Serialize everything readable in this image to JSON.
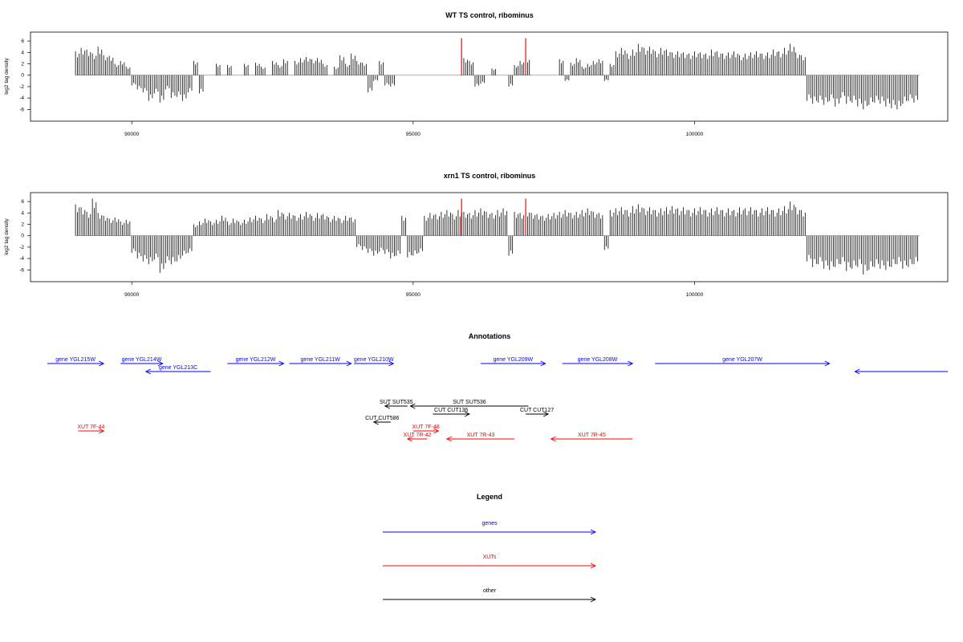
{
  "colors": {
    "gene": "#0000ff",
    "xut": "#ff0000",
    "other": "#000000",
    "marker": "#ff0000",
    "axis": "#000000"
  },
  "chart_data": [
    {
      "type": "bar",
      "title": "WT TS control, ribominus",
      "ylabel": "log2 tag density",
      "xlim": [
        88200,
        104500
      ],
      "ylim": [
        -7.5,
        7
      ],
      "xticks": [
        90000,
        95000,
        100000
      ],
      "yticks": [
        -6,
        -4,
        -2,
        0,
        2,
        4,
        6
      ],
      "markers": [
        95860,
        97000
      ],
      "series": {
        "x": [
          89000,
          89100,
          89200,
          89300,
          89400,
          89500,
          89600,
          89700,
          89800,
          89900,
          90000,
          90100,
          90200,
          90300,
          90400,
          90500,
          90600,
          90700,
          90800,
          90900,
          91000,
          91100,
          91200,
          91300,
          91400,
          91500,
          91600,
          91700,
          91800,
          91900,
          92000,
          92100,
          92200,
          92300,
          92400,
          92500,
          92600,
          92700,
          92800,
          92900,
          93000,
          93100,
          93200,
          93300,
          93400,
          93500,
          93600,
          93700,
          93800,
          93900,
          94000,
          94100,
          94200,
          94300,
          94400,
          94500,
          94600,
          94700,
          94800,
          94900,
          95000,
          95100,
          95200,
          95300,
          95400,
          95500,
          95600,
          95700,
          95800,
          95900,
          96000,
          96100,
          96200,
          96300,
          96400,
          96500,
          96600,
          96700,
          96800,
          96900,
          97000,
          97100,
          97200,
          97300,
          97400,
          97500,
          97600,
          97700,
          97800,
          97900,
          98000,
          98100,
          98200,
          98300,
          98400,
          98500,
          98600,
          98700,
          98800,
          98900,
          99000,
          99100,
          99200,
          99300,
          99400,
          99500,
          99600,
          99700,
          99800,
          99900,
          100000,
          100100,
          100200,
          100300,
          100400,
          100500,
          100600,
          100700,
          100800,
          100900,
          101000,
          101100,
          101200,
          101300,
          101400,
          101500,
          101600,
          101700,
          101800,
          101900,
          102000,
          102100,
          102200,
          102300,
          102400,
          102500,
          102600,
          102700,
          102800,
          102900,
          103000,
          103100,
          103200,
          103300,
          103400,
          103500,
          103600,
          103700,
          103800,
          103900
        ],
        "values": [
          4.2,
          4.8,
          4.5,
          3.8,
          5.0,
          3.5,
          3.4,
          2.0,
          2.5,
          1.5,
          -1.8,
          -2.5,
          -3.0,
          -4.5,
          -3.2,
          -4.8,
          -2.5,
          -4.0,
          -3.8,
          -4.5,
          -3.0,
          2.5,
          -3.2,
          0,
          0,
          2.0,
          0,
          1.8,
          0,
          0,
          2.0,
          0,
          2.2,
          1.5,
          0,
          2.5,
          1.8,
          2.8,
          0,
          2.5,
          3.0,
          3.2,
          2.8,
          3.0,
          2.0,
          0,
          1.5,
          3.5,
          2.0,
          3.8,
          2.5,
          2.2,
          -3.0,
          -1.0,
          2.5,
          -1.8,
          -2.0,
          0,
          0,
          0,
          0,
          0,
          0,
          0,
          0,
          0,
          0,
          0,
          0,
          3.0,
          2.5,
          -2.0,
          -1.5,
          0,
          1.2,
          0,
          0,
          -2.0,
          1.8,
          2.5,
          3.0,
          0,
          0,
          0,
          0,
          0,
          2.8,
          -1.0,
          2.2,
          3.0,
          1.5,
          2.0,
          2.5,
          2.8,
          -1.0,
          2.0,
          4.2,
          4.8,
          3.8,
          4.5,
          5.5,
          4.8,
          5.0,
          4.2,
          4.8,
          4.5,
          4.0,
          4.2,
          4.0,
          3.8,
          4.2,
          4.0,
          3.8,
          4.5,
          4.2,
          3.8,
          4.0,
          4.2,
          3.5,
          3.8,
          4.0,
          4.2,
          3.8,
          4.0,
          4.5,
          4.2,
          4.8,
          5.5,
          4.0,
          3.5,
          -4.5,
          -5.0,
          -4.8,
          -5.2,
          -4.5,
          -5.5,
          -4.0,
          -5.0,
          -4.8,
          -5.5,
          -6.0,
          -5.2,
          -4.8,
          -5.0,
          -5.5,
          -5.8,
          -6.0,
          -5.0,
          -4.5,
          -4.8
        ]
      }
    },
    {
      "type": "bar",
      "title": "xrn1 TS control, ribominus",
      "ylabel": "log2 tag density",
      "xlim": [
        88200,
        104500
      ],
      "ylim": [
        -7.5,
        7
      ],
      "xticks": [
        90000,
        95000,
        100000
      ],
      "yticks": [
        -6,
        -4,
        -2,
        0,
        2,
        4,
        6
      ],
      "markers": [
        95860,
        97000
      ],
      "series": {
        "x": [
          89000,
          89100,
          89200,
          89300,
          89400,
          89500,
          89600,
          89700,
          89800,
          89900,
          90000,
          90100,
          90200,
          90300,
          90400,
          90500,
          90600,
          90700,
          90800,
          90900,
          91000,
          91100,
          91200,
          91300,
          91400,
          91500,
          91600,
          91700,
          91800,
          91900,
          92000,
          92100,
          92200,
          92300,
          92400,
          92500,
          92600,
          92700,
          92800,
          92900,
          93000,
          93100,
          93200,
          93300,
          93400,
          93500,
          93600,
          93700,
          93800,
          93900,
          94000,
          94100,
          94200,
          94300,
          94400,
          94500,
          94600,
          94700,
          94800,
          94900,
          95000,
          95100,
          95200,
          95300,
          95400,
          95500,
          95600,
          95700,
          95800,
          95900,
          96000,
          96100,
          96200,
          96300,
          96400,
          96500,
          96600,
          96700,
          96800,
          96900,
          97000,
          97100,
          97200,
          97300,
          97400,
          97500,
          97600,
          97700,
          97800,
          97900,
          98000,
          98100,
          98200,
          98300,
          98400,
          98500,
          98600,
          98700,
          98800,
          98900,
          99000,
          99100,
          99200,
          99300,
          99400,
          99500,
          99600,
          99700,
          99800,
          99900,
          100000,
          100100,
          100200,
          100300,
          100400,
          100500,
          100600,
          100700,
          100800,
          100900,
          101000,
          101100,
          101200,
          101300,
          101400,
          101500,
          101600,
          101700,
          101800,
          101900,
          102000,
          102100,
          102200,
          102300,
          102400,
          102500,
          102600,
          102700,
          102800,
          102900,
          103000,
          103100,
          103200,
          103300,
          103400,
          103500,
          103600,
          103700,
          103800,
          103900
        ],
        "values": [
          5.5,
          5.0,
          4.2,
          6.5,
          4.0,
          3.5,
          3.0,
          3.2,
          2.5,
          2.8,
          -3.0,
          -4.0,
          -4.5,
          -5.0,
          -4.2,
          -6.5,
          -4.8,
          -5.0,
          -4.5,
          -3.5,
          -3.0,
          2.0,
          2.5,
          3.0,
          2.5,
          2.8,
          3.5,
          2.5,
          3.0,
          2.5,
          2.8,
          3.2,
          3.5,
          3.0,
          3.8,
          3.2,
          4.5,
          3.8,
          4.0,
          3.5,
          3.8,
          4.2,
          3.5,
          4.0,
          3.8,
          3.2,
          3.5,
          3.0,
          3.5,
          3.2,
          -2.0,
          -2.5,
          -3.0,
          -3.5,
          -2.8,
          -3.2,
          -4.0,
          -3.5,
          3.5,
          -3.8,
          -3.5,
          -3.0,
          3.5,
          4.0,
          3.8,
          4.2,
          4.5,
          3.8,
          4.5,
          4.2,
          4.0,
          4.5,
          4.8,
          4.2,
          4.0,
          4.5,
          4.8,
          -3.5,
          4.2,
          4.0,
          4.5,
          4.0,
          3.8,
          3.5,
          3.8,
          4.0,
          4.2,
          4.5,
          4.0,
          4.2,
          4.5,
          4.8,
          4.2,
          4.0,
          -2.5,
          4.5,
          4.8,
          5.0,
          4.5,
          5.2,
          5.5,
          4.8,
          5.0,
          4.5,
          4.8,
          5.0,
          5.2,
          4.8,
          5.0,
          4.5,
          4.8,
          5.0,
          4.5,
          4.8,
          5.0,
          4.5,
          4.8,
          4.5,
          5.0,
          4.8,
          5.0,
          4.5,
          4.8,
          5.0,
          4.5,
          4.8,
          5.2,
          6.0,
          5.0,
          4.5,
          -4.5,
          -5.5,
          -5.0,
          -5.8,
          -6.0,
          -5.5,
          -5.0,
          -6.2,
          -5.8,
          -5.5,
          -6.8,
          -6.0,
          -5.5,
          -5.8,
          -6.0,
          -5.5,
          -5.0,
          -5.8,
          -5.5,
          -5.0
        ]
      }
    }
  ],
  "annotations": {
    "title": "Annotations",
    "xlim": [
      88200,
      104500
    ],
    "items": [
      {
        "label": "gene YGL215W",
        "x0": 88500,
        "x1": 89500,
        "dir": "right",
        "type": "gene",
        "row": 0
      },
      {
        "label": "gene YGL214W",
        "x0": 89800,
        "x1": 90550,
        "dir": "right",
        "type": "gene",
        "row": 0
      },
      {
        "label": "gene YGL213C",
        "x0": 90250,
        "x1": 91400,
        "dir": "left",
        "type": "gene",
        "row": 1
      },
      {
        "label": "gene YGL212W",
        "x0": 91700,
        "x1": 92700,
        "dir": "right",
        "type": "gene",
        "row": 0
      },
      {
        "label": "gene YGL211W",
        "x0": 92800,
        "x1": 93900,
        "dir": "right",
        "type": "gene",
        "row": 0
      },
      {
        "label": "gene YGL210W",
        "x0": 93950,
        "x1": 94650,
        "dir": "right",
        "type": "gene",
        "row": 0
      },
      {
        "label": "gene YGL209W",
        "x0": 96200,
        "x1": 97350,
        "dir": "right",
        "type": "gene",
        "row": 0
      },
      {
        "label": "gene YGL208W",
        "x0": 97650,
        "x1": 98900,
        "dir": "right",
        "type": "gene",
        "row": 0
      },
      {
        "label": "gene YGL207W",
        "x0": 99300,
        "x1": 102400,
        "dir": "right",
        "type": "gene",
        "row": 0
      },
      {
        "label": "",
        "x0": 102850,
        "x1": 104500,
        "dir": "left",
        "type": "gene",
        "row": 1
      },
      {
        "label": "SUT SUT535",
        "x0": 94500,
        "x1": 94900,
        "dir": "left",
        "type": "other",
        "row": 2
      },
      {
        "label": "SUT SUT536",
        "x0": 94950,
        "x1": 97050,
        "dir": "left",
        "type": "other",
        "row": 2.5
      },
      {
        "label": "CUT CUT136",
        "x0": 95350,
        "x1": 96000,
        "dir": "right",
        "type": "other",
        "row": 3
      },
      {
        "label": "CUT CUT127",
        "x0": 97000,
        "x1": 97400,
        "dir": "right",
        "type": "other",
        "row": 3
      },
      {
        "label": "CUT CUT586",
        "x0": 94300,
        "x1": 94600,
        "dir": "left",
        "type": "other",
        "row": 4
      },
      {
        "label": "XUT 7F-44",
        "x0": 89050,
        "x1": 89500,
        "dir": "right",
        "type": "xut",
        "row": 5
      },
      {
        "label": "XUT 7F-48",
        "x0": 95000,
        "x1": 95450,
        "dir": "right",
        "type": "xut",
        "row": 5
      },
      {
        "label": "XUT 7R-42",
        "x0": 94900,
        "x1": 95250,
        "dir": "left",
        "type": "xut",
        "row": 6
      },
      {
        "label": "XUT 7R-43",
        "x0": 95600,
        "x1": 96800,
        "dir": "left",
        "type": "xut",
        "row": 6
      },
      {
        "label": "XUT 7R-45",
        "x0": 97450,
        "x1": 98900,
        "dir": "left",
        "type": "xut",
        "row": 6
      }
    ]
  },
  "legend": {
    "title": "Legend",
    "items": [
      {
        "label": "genes",
        "type": "gene"
      },
      {
        "label": "XUTs",
        "type": "xut"
      },
      {
        "label": "other",
        "type": "other"
      }
    ]
  }
}
